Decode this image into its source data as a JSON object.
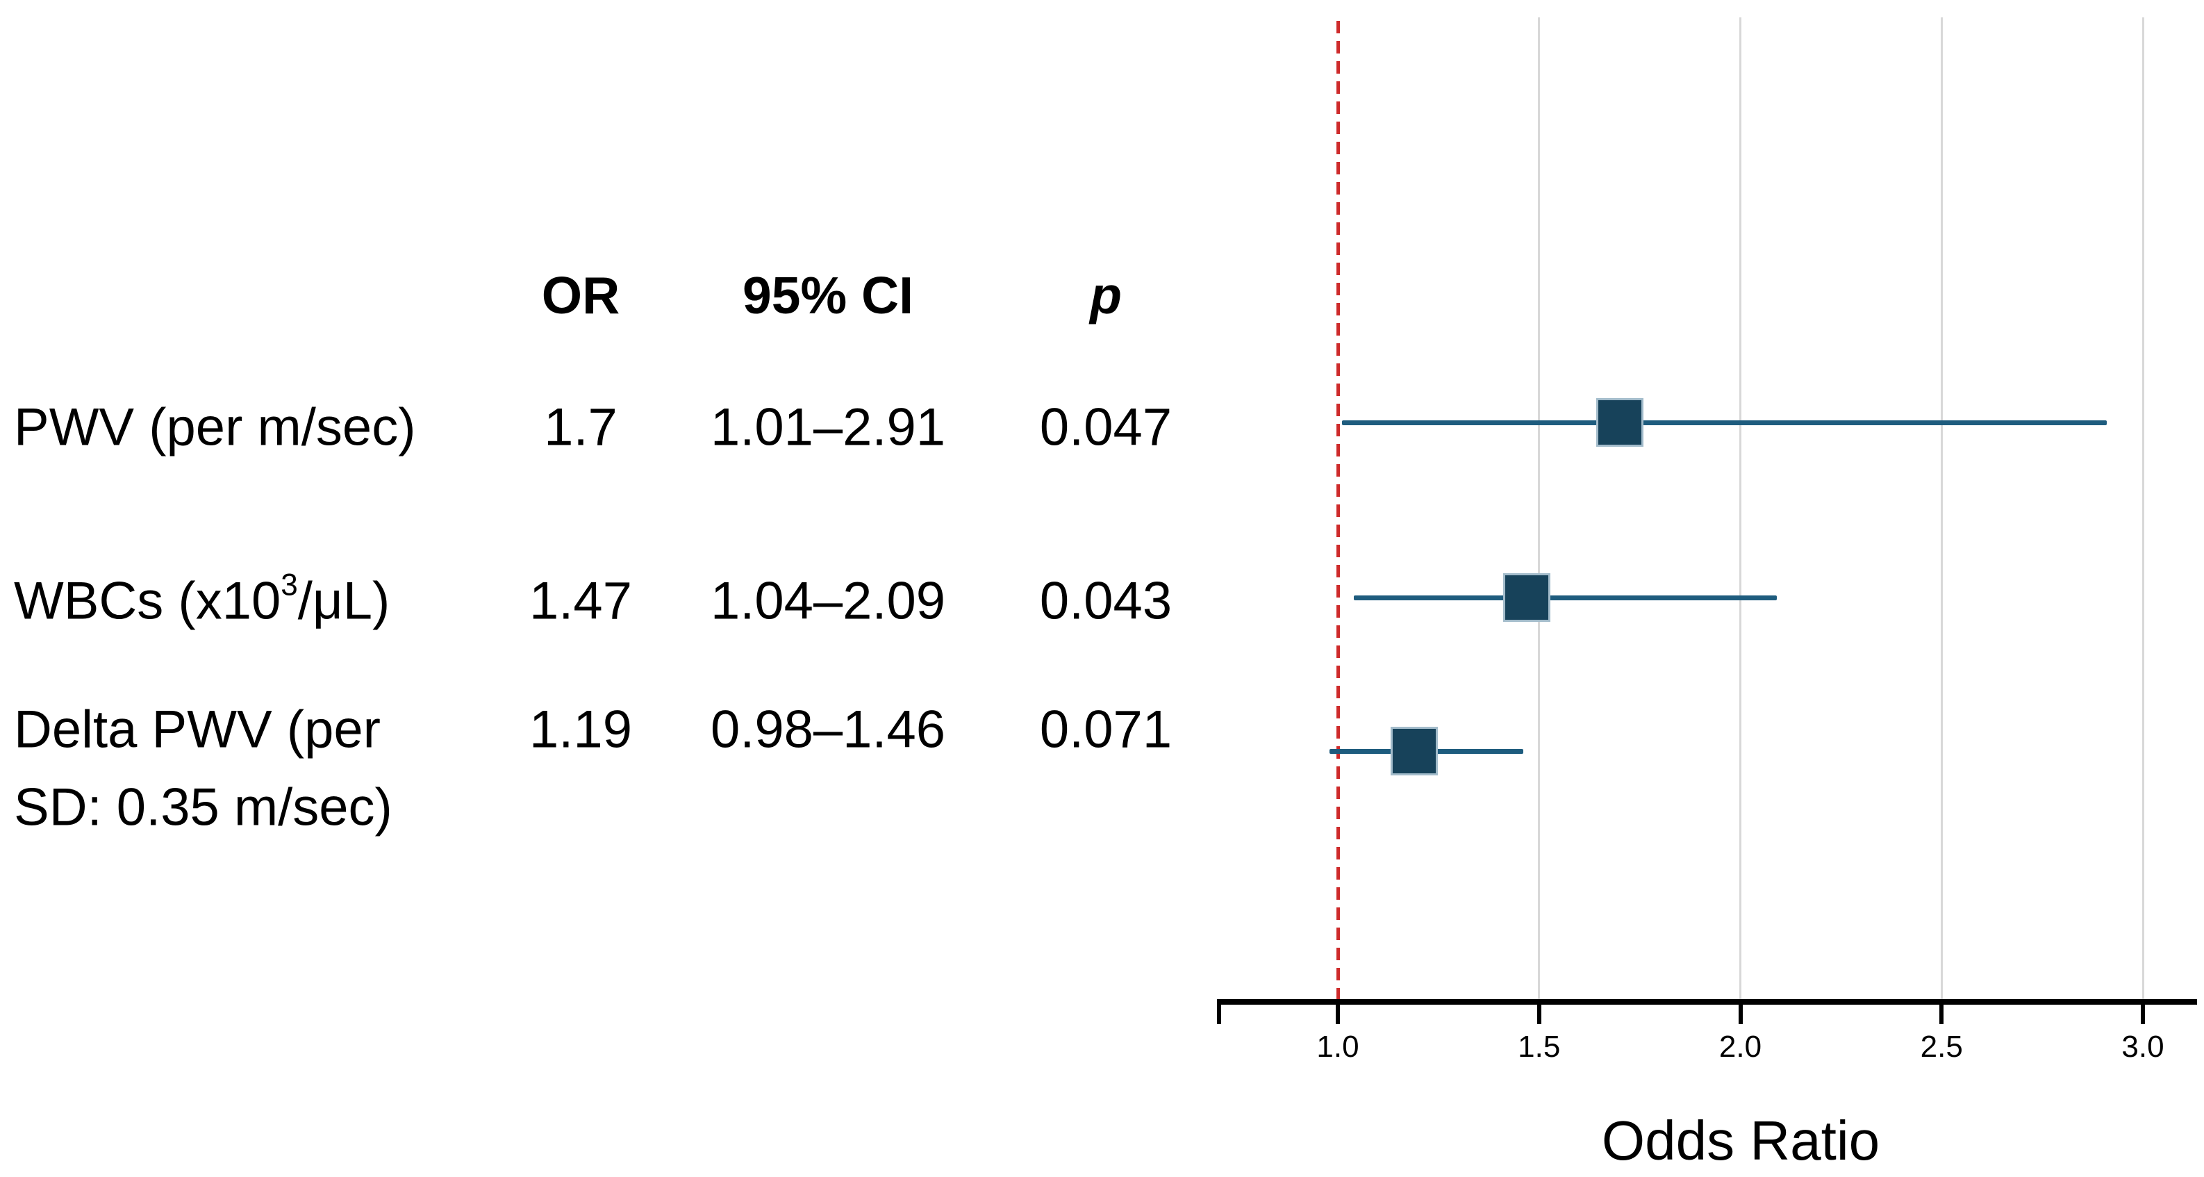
{
  "table": {
    "headers": {
      "or": "OR",
      "ci": "95% CI",
      "p": "p"
    },
    "rows": [
      {
        "label_lines": [
          [
            {
              "text": "PWV (per m/sec)"
            }
          ]
        ],
        "or": "1.7",
        "ci": "1.01–2.91",
        "p": "0.047"
      },
      {
        "label_lines": [
          [
            {
              "text": "WBCs (x10"
            },
            {
              "text": "3",
              "sup": true
            },
            {
              "text": "/μL)"
            }
          ]
        ],
        "or": "1.47",
        "ci": "1.04–2.09",
        "p": "0.043"
      },
      {
        "label_lines": [
          [
            {
              "text": "Delta PWV (per"
            }
          ],
          [
            {
              "text": "SD: 0.35 m/sec)"
            }
          ]
        ],
        "or": "1.19",
        "ci": "0.98–1.46",
        "p": "0.071"
      }
    ]
  },
  "chart_data": {
    "type": "scatter",
    "subtype": "forest-plot",
    "title": "",
    "xlabel": "Odds Ratio",
    "ylabel": "",
    "xlim": [
      0.7,
      3.15
    ],
    "xticks": [
      1.0,
      1.5,
      2.0,
      2.5,
      3.0
    ],
    "xtick_labels": [
      "1.0",
      "1.5",
      "2.0",
      "2.5",
      "3.0"
    ],
    "gridlines": [
      1.5,
      2.0,
      2.5,
      3.0
    ],
    "grid_on": true,
    "reference_line": 1.0,
    "legend_position": "none",
    "series": [
      {
        "name": "PWV (per m/sec)",
        "or": 1.7,
        "ci_low": 1.01,
        "ci_high": 2.91,
        "p": 0.047
      },
      {
        "name": "WBCs (x10^3/μL)",
        "or": 1.47,
        "ci_low": 1.04,
        "ci_high": 2.09,
        "p": 0.043
      },
      {
        "name": "Delta PWV (per SD: 0.35 m/sec)",
        "or": 1.19,
        "ci_low": 0.98,
        "ci_high": 1.46,
        "p": 0.071
      }
    ],
    "colors": {
      "marker_fill": "#17425A",
      "marker_edge": "#A3BCCB",
      "ci_line": "#1E5C7E",
      "reference_line": "#CE2B2B",
      "gridline": "#D8D8D8",
      "axis": "#000000"
    }
  }
}
